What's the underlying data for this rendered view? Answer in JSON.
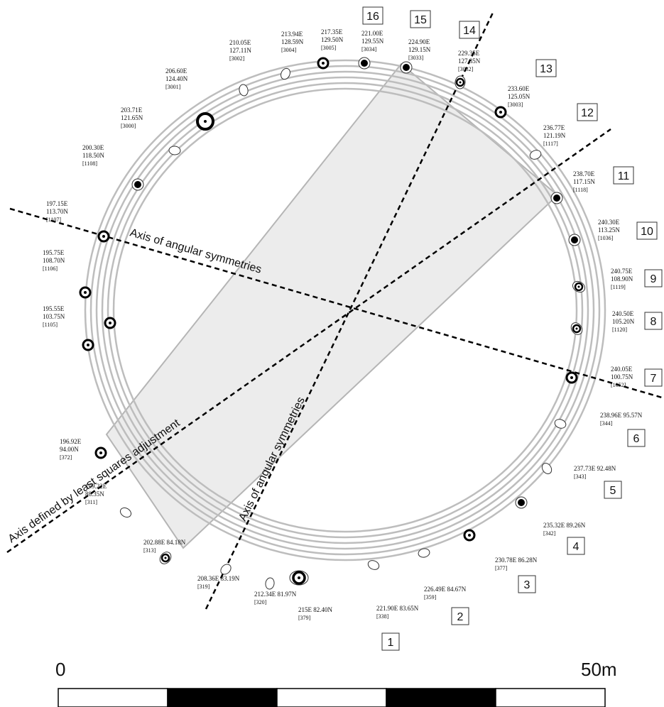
{
  "axes": {
    "angular_1": "Axis of angular symmetries",
    "angular_2": "Axis of angular symmetries",
    "least_squares": "Axis defined by least squares adjustment"
  },
  "scale": {
    "start": "0",
    "end": "50m"
  },
  "numbers": [
    "1",
    "2",
    "3",
    "4",
    "5",
    "6",
    "7",
    "8",
    "9",
    "10",
    "11",
    "12",
    "13",
    "14",
    "15",
    "16"
  ],
  "stones": [
    {
      "e": "221.90E 83.65N",
      "id": "[338]"
    },
    {
      "e": "226.49E 84.67N",
      "id": "[359]"
    },
    {
      "e": "230.78E 86.28N",
      "id": "[377]"
    },
    {
      "e": "235.32E 89.26N",
      "id": "[342]"
    },
    {
      "e": "237.73E 92.48N",
      "id": "[343]"
    },
    {
      "e": "238.96E 95.57N",
      "id": "[344]"
    },
    {
      "e": "240.05E",
      "n": "100.75N",
      "id": "[1052]"
    },
    {
      "e": "240.50E",
      "n": "105.20N",
      "id": "[1120]"
    },
    {
      "e": "240.75E",
      "n": "108.90N",
      "id": "[1119]"
    },
    {
      "e": "240.30E",
      "n": "113.25N",
      "id": "[1036]"
    },
    {
      "e": "238.70E",
      "n": "117.15N",
      "id": "[1118]"
    },
    {
      "e": "236.77E",
      "n": "121.19N",
      "id": "[1117]"
    },
    {
      "e": "233.60E",
      "n": "125.05N",
      "id": "[3003]"
    },
    {
      "e": "229.35E",
      "n": "127.85N",
      "id": "[3032]"
    },
    {
      "e": "224.90E",
      "n": "129.15N",
      "id": "[3033]"
    },
    {
      "e": "221.00E",
      "n": "129.55N",
      "id": "[3034]"
    },
    {
      "e": "217.35E",
      "n": "129.50N",
      "id": "[3005]"
    },
    {
      "e": "213.94E",
      "n": "128.59N",
      "id": "[3004]"
    },
    {
      "e": "210.05E",
      "n": "127.11N",
      "id": "[3002]"
    },
    {
      "e": "206.60E",
      "n": "124.40N",
      "id": "[3001]"
    },
    {
      "e": "203.71E",
      "n": "121.65N",
      "id": "[3000]"
    },
    {
      "e": "200.30E",
      "n": "118.50N",
      "id": "[1108]"
    },
    {
      "e": "197.15E",
      "n": "113.70N",
      "id": "[1107]"
    },
    {
      "e": "195.75E",
      "n": "108.70N",
      "id": "[1106]"
    },
    {
      "e": "195.55E",
      "n": "103.75N",
      "id": "[1105]"
    },
    {
      "e": "196.92E",
      "n": "94.00N",
      "id": "[372]"
    },
    {
      "e": "199.22E",
      "n": "88.35N",
      "id": "[311]"
    },
    {
      "e": "202.88E 84.18N",
      "id": "[313]"
    },
    {
      "e": "208.36E 83.19N",
      "id": "[319]"
    },
    {
      "e": "212.34E 81.97N",
      "id": "[320]"
    },
    {
      "e": "215E 82.40N",
      "id": "[379]"
    }
  ]
}
